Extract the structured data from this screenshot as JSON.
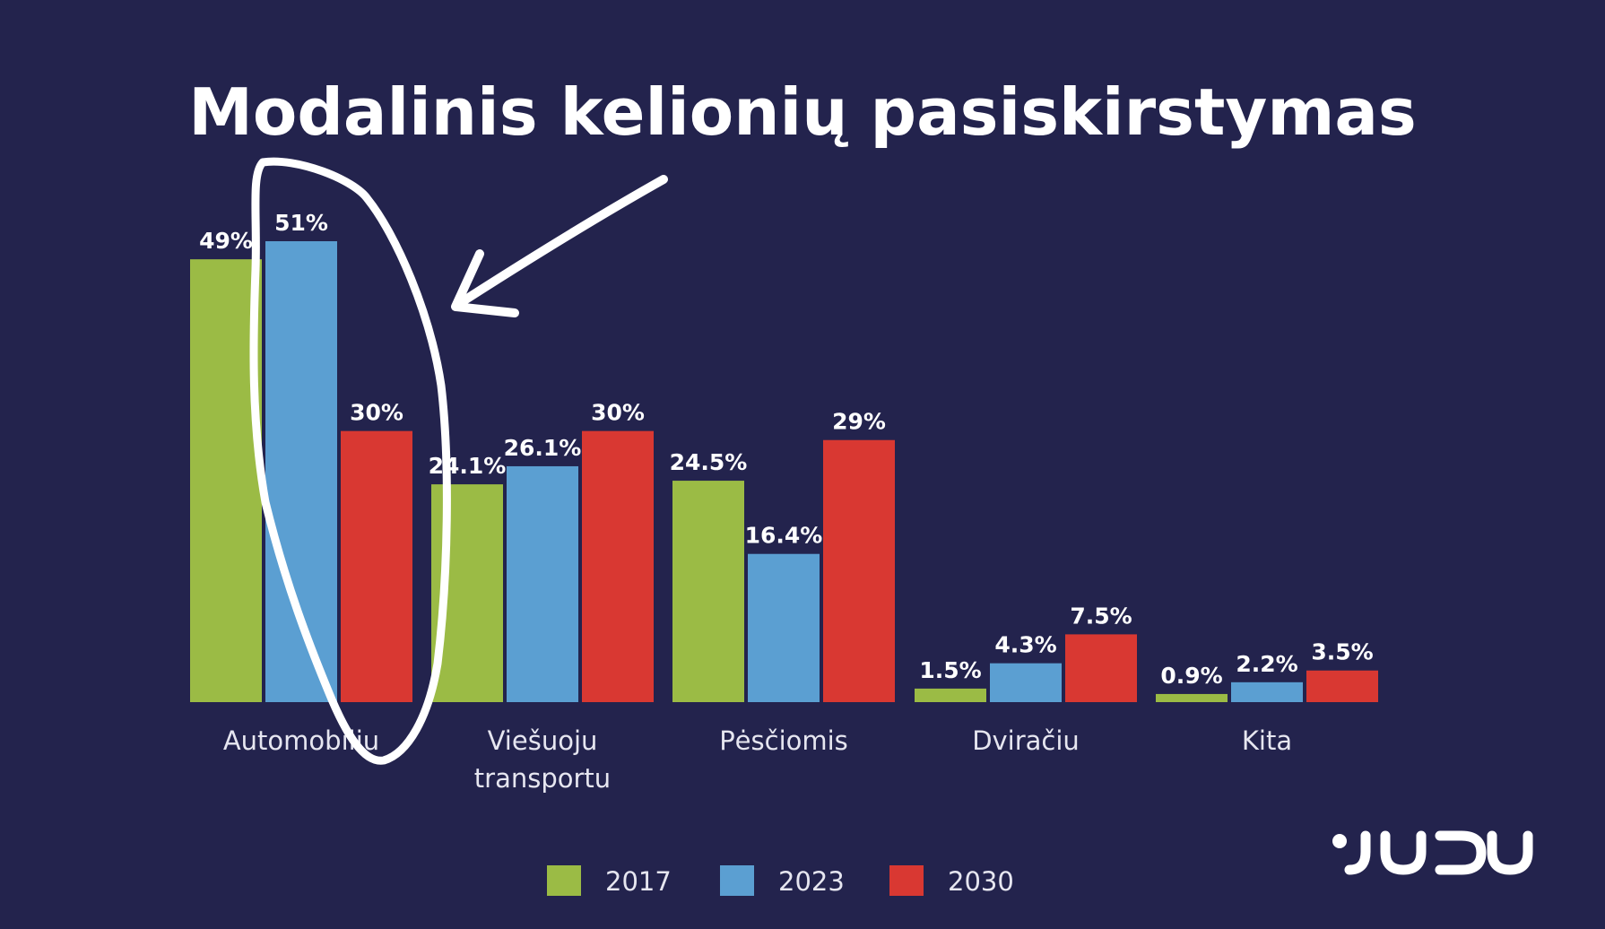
{
  "colors": {
    "background": "#23234d",
    "series_2017": "#9bbb45",
    "series_2023": "#5b9fd2",
    "series_2030": "#d93832",
    "annotation": "#ffffff"
  },
  "chart_data": {
    "type": "bar",
    "title": "Modalinis kelionių pasiskirstymas",
    "categories": [
      "Automobiliu",
      "Viešuoju transportu",
      "Pėsčiomis",
      "Dviračiu",
      "Kita"
    ],
    "category_lines": [
      [
        "Automobiliu"
      ],
      [
        "Viešuoju",
        "transportu"
      ],
      [
        "Pėsčiomis"
      ],
      [
        "Dviračiu"
      ],
      [
        "Kita"
      ]
    ],
    "series": [
      {
        "name": "2017",
        "values": [
          49,
          24.1,
          24.5,
          1.5,
          0.9
        ],
        "labels": [
          "49%",
          "24.1%",
          "24.5%",
          "1.5%",
          "0.9%"
        ]
      },
      {
        "name": "2023",
        "values": [
          51,
          26.1,
          16.4,
          4.3,
          2.2
        ],
        "labels": [
          "51%",
          "26.1%",
          "16.4%",
          "4.3%",
          "2.2%"
        ]
      },
      {
        "name": "2030",
        "values": [
          30,
          30,
          29,
          7.5,
          3.5
        ],
        "labels": [
          "30%",
          "30%",
          "29%",
          "7.5%",
          "3.5%"
        ]
      }
    ],
    "ylim": [
      0,
      51
    ],
    "grid": false,
    "legend_position": "bottom-center",
    "xlabel": "",
    "ylabel": ""
  },
  "annotation": {
    "type": "hand-drawn circle and arrow",
    "highlights_series": "2023",
    "highlights_category": "Automobiliu"
  },
  "logo": {
    "text": "JUDU",
    "position": "bottom-right"
  }
}
